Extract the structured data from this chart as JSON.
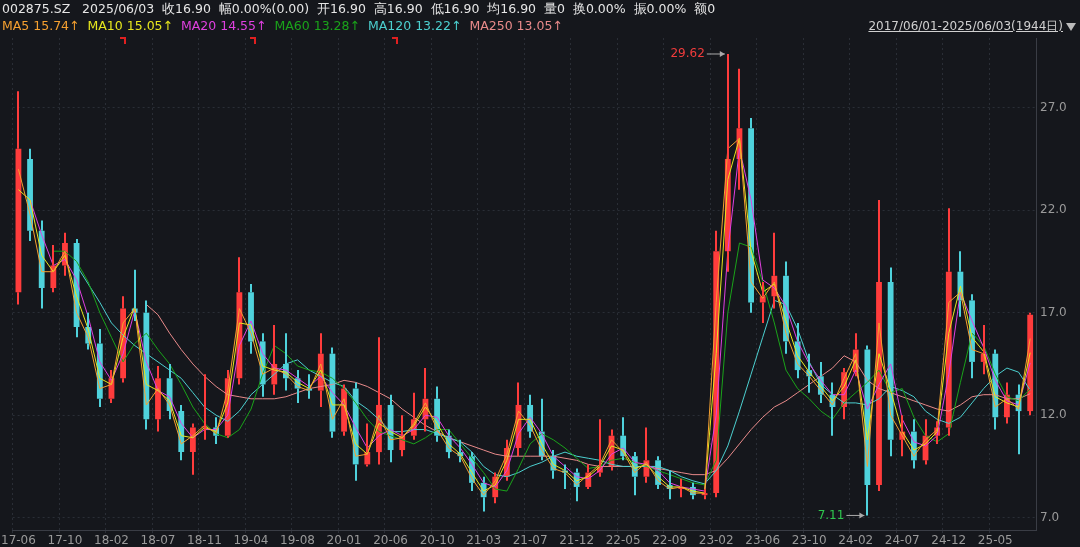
{
  "chart_data": {
    "type": "candlestick",
    "title": "002875.SZ",
    "subtitle": "2025/06/03  收16.90  幅0.00%(0.00)  开16.90  高16.90  低16.90  均16.90  量0  换0.00%  振0.00%  额0",
    "annotations": [
      "2017/06/01-2025/06/03(1944日)",
      "29.62",
      "7.11"
    ],
    "categories": [
      "17-06",
      null,
      null,
      null,
      "17-10",
      null,
      null,
      null,
      "18-02",
      null,
      null,
      null,
      "18-07",
      null,
      null,
      null,
      "18-11",
      null,
      null,
      null,
      "19-04",
      null,
      null,
      null,
      "19-08",
      null,
      null,
      null,
      "20-01",
      null,
      null,
      null,
      "20-06",
      null,
      null,
      null,
      "20-10",
      null,
      null,
      null,
      "21-03",
      null,
      null,
      null,
      "21-07",
      null,
      null,
      null,
      "21-12",
      null,
      null,
      null,
      "22-05",
      null,
      null,
      null,
      "22-09",
      null,
      null,
      null,
      "23-02",
      null,
      null,
      null,
      "23-06",
      null,
      null,
      null,
      "23-10",
      null,
      null,
      null,
      "24-02",
      null,
      null,
      null,
      "24-07",
      null,
      null,
      null,
      "24-12",
      null,
      null,
      null,
      "25-05",
      null,
      null,
      null
    ],
    "ohlc": [
      [
        18.0,
        27.8,
        17.4,
        25.0
      ],
      [
        24.5,
        25.0,
        20.5,
        21.0
      ],
      [
        21.0,
        21.5,
        17.2,
        18.2
      ],
      [
        18.2,
        20.3,
        18.0,
        19.3
      ],
      [
        19.3,
        20.9,
        18.8,
        20.4
      ],
      [
        20.4,
        20.6,
        15.8,
        16.3
      ],
      [
        16.3,
        17.0,
        15.2,
        15.5
      ],
      [
        15.5,
        16.2,
        12.4,
        12.8
      ],
      [
        12.8,
        14.2,
        12.6,
        13.8
      ],
      [
        13.8,
        17.8,
        13.6,
        17.2
      ],
      [
        17.2,
        19.1,
        16.6,
        17.0
      ],
      [
        17.0,
        17.6,
        11.3,
        11.8
      ],
      [
        11.8,
        14.4,
        11.2,
        13.8
      ],
      [
        13.8,
        14.5,
        11.8,
        12.2
      ],
      [
        12.2,
        12.5,
        9.8,
        10.2
      ],
      [
        10.2,
        11.6,
        9.1,
        11.4
      ],
      [
        11.4,
        14.0,
        10.8,
        11.4
      ],
      [
        11.4,
        11.9,
        10.6,
        11.0
      ],
      [
        11.0,
        14.2,
        10.9,
        13.8
      ],
      [
        13.8,
        19.7,
        13.5,
        18.0
      ],
      [
        18.0,
        18.4,
        15.0,
        15.6
      ],
      [
        15.6,
        16.0,
        12.9,
        13.5
      ],
      [
        13.5,
        16.4,
        13.0,
        14.5
      ],
      [
        14.5,
        16.0,
        13.2,
        13.8
      ],
      [
        13.8,
        14.2,
        12.6,
        13.3
      ],
      [
        13.3,
        14.0,
        12.8,
        13.2
      ],
      [
        13.2,
        16.0,
        12.4,
        15.0
      ],
      [
        15.0,
        15.3,
        10.9,
        11.2
      ],
      [
        11.2,
        13.5,
        11.0,
        13.3
      ],
      [
        13.3,
        13.6,
        8.8,
        9.6
      ],
      [
        9.6,
        11.6,
        9.5,
        10.2
      ],
      [
        10.2,
        15.8,
        9.6,
        12.5
      ],
      [
        12.5,
        13.0,
        9.7,
        10.3
      ],
      [
        10.3,
        12.0,
        10.0,
        11.0
      ],
      [
        11.0,
        13.1,
        10.8,
        11.8
      ],
      [
        11.8,
        14.3,
        11.2,
        12.8
      ],
      [
        12.8,
        13.4,
        10.7,
        11.0
      ],
      [
        11.0,
        11.3,
        9.9,
        10.2
      ],
      [
        10.2,
        10.8,
        9.7,
        10.0
      ],
      [
        10.0,
        10.2,
        8.3,
        8.7
      ],
      [
        8.7,
        9.0,
        7.3,
        8.0
      ],
      [
        8.0,
        9.2,
        7.7,
        9.0
      ],
      [
        9.0,
        10.8,
        8.8,
        10.4
      ],
      [
        10.4,
        13.6,
        10.0,
        12.5
      ],
      [
        12.5,
        13.0,
        10.9,
        11.2
      ],
      [
        11.2,
        12.8,
        9.8,
        10.0
      ],
      [
        10.0,
        10.3,
        8.9,
        9.3
      ],
      [
        9.3,
        9.6,
        8.4,
        9.2
      ],
      [
        9.2,
        9.4,
        7.8,
        8.5
      ],
      [
        8.5,
        9.6,
        8.4,
        9.2
      ],
      [
        9.2,
        11.8,
        9.0,
        9.5
      ],
      [
        9.5,
        11.3,
        9.3,
        11.0
      ],
      [
        11.0,
        11.9,
        9.8,
        10.0
      ],
      [
        10.0,
        10.2,
        8.1,
        9.0
      ],
      [
        9.0,
        11.4,
        8.7,
        9.8
      ],
      [
        9.8,
        10.0,
        8.4,
        8.6
      ],
      [
        8.6,
        9.3,
        7.9,
        8.4
      ],
      [
        8.4,
        8.9,
        8.0,
        8.5
      ],
      [
        8.5,
        8.7,
        7.9,
        8.1
      ],
      [
        8.1,
        8.4,
        7.9,
        8.2
      ],
      [
        8.2,
        21.0,
        8.0,
        20.0
      ],
      [
        20.0,
        29.62,
        19.0,
        24.5
      ],
      [
        24.5,
        28.9,
        23.0,
        26.0
      ],
      [
        26.0,
        26.5,
        17.0,
        17.5
      ],
      [
        17.5,
        18.5,
        16.5,
        17.8
      ],
      [
        17.8,
        20.9,
        17.2,
        18.8
      ],
      [
        18.8,
        19.5,
        15.0,
        15.6
      ],
      [
        15.6,
        16.5,
        13.8,
        14.2
      ],
      [
        14.2,
        15.0,
        13.1,
        13.9
      ],
      [
        13.9,
        14.6,
        12.6,
        13.0
      ],
      [
        13.0,
        13.6,
        11.0,
        12.4
      ],
      [
        12.4,
        14.3,
        11.8,
        14.1
      ],
      [
        14.1,
        16.0,
        13.9,
        15.2
      ],
      [
        15.2,
        15.4,
        7.11,
        8.6
      ],
      [
        8.6,
        22.5,
        8.3,
        18.5
      ],
      [
        18.5,
        19.2,
        10.0,
        10.8
      ],
      [
        10.8,
        12.0,
        10.0,
        11.2
      ],
      [
        11.2,
        11.8,
        9.4,
        9.8
      ],
      [
        9.8,
        11.8,
        9.6,
        11.0
      ],
      [
        11.0,
        11.7,
        10.6,
        11.4
      ],
      [
        11.4,
        22.1,
        11.0,
        19.0
      ],
      [
        19.0,
        20.0,
        16.8,
        17.6
      ],
      [
        17.6,
        17.9,
        13.8,
        14.6
      ],
      [
        14.6,
        16.4,
        14.0,
        15.0
      ],
      [
        15.0,
        15.2,
        11.3,
        11.9
      ],
      [
        11.9,
        13.6,
        11.6,
        13.0
      ],
      [
        13.0,
        13.5,
        10.1,
        12.2
      ],
      [
        12.2,
        17.0,
        12.0,
        16.9
      ]
    ],
    "colors": [
      "#ff3c3c",
      "#4fd2dc",
      "#4fd2dc",
      "#ff3c3c",
      "#ff3c3c",
      "#4fd2dc",
      "#4fd2dc",
      "#4fd2dc",
      "#ff3c3c",
      "#ff3c3c",
      "#4fd2dc",
      "#4fd2dc",
      "#ff3c3c",
      "#4fd2dc",
      "#4fd2dc",
      "#ff3c3c",
      "#ff3c3c",
      "#4fd2dc",
      "#ff3c3c",
      "#ff3c3c",
      "#4fd2dc",
      "#4fd2dc",
      "#ff3c3c",
      "#4fd2dc",
      "#4fd2dc",
      "#4fd2dc",
      "#ff3c3c",
      "#4fd2dc",
      "#ff3c3c",
      "#4fd2dc",
      "#ff3c3c",
      "#ff3c3c",
      "#4fd2dc",
      "#ff3c3c",
      "#ff3c3c",
      "#ff3c3c",
      "#4fd2dc",
      "#4fd2dc",
      "#4fd2dc",
      "#4fd2dc",
      "#4fd2dc",
      "#ff3c3c",
      "#ff3c3c",
      "#ff3c3c",
      "#4fd2dc",
      "#4fd2dc",
      "#4fd2dc",
      "#4fd2dc",
      "#4fd2dc",
      "#ff3c3c",
      "#ff3c3c",
      "#ff3c3c",
      "#4fd2dc",
      "#4fd2dc",
      "#ff3c3c",
      "#4fd2dc",
      "#4fd2dc",
      "#ff3c3c",
      "#4fd2dc",
      "#ff3c3c",
      "#ff3c3c",
      "#ff3c3c",
      "#ff3c3c",
      "#4fd2dc",
      "#ff3c3c",
      "#ff3c3c",
      "#4fd2dc",
      "#4fd2dc",
      "#4fd2dc",
      "#4fd2dc",
      "#4fd2dc",
      "#ff3c3c",
      "#ff3c3c",
      "#4fd2dc",
      "#ff3c3c",
      "#4fd2dc",
      "#ff3c3c",
      "#4fd2dc",
      "#ff3c3c",
      "#ff3c3c",
      "#ff3c3c",
      "#4fd2dc",
      "#4fd2dc",
      "#ff3c3c",
      "#4fd2dc",
      "#ff3c3c",
      "#4fd2dc",
      "#ff3c3c"
    ],
    "series": [
      {
        "type": "line",
        "name": "MA5 15.74↑",
        "color": "#f5a030",
        "values": [
          24.0,
          21.8,
          19.0,
          19.0,
          20.0,
          17.0,
          15.8,
          13.3,
          13.5,
          16.5,
          17.2,
          12.5,
          13.3,
          12.5,
          10.6,
          11.0,
          11.5,
          11.1,
          13.2,
          17.2,
          16.0,
          14.0,
          14.3,
          14.0,
          13.4,
          13.2,
          14.5,
          11.8,
          12.8,
          10.0,
          10.1,
          12.0,
          10.8,
          10.9,
          11.6,
          12.6,
          11.3,
          10.4,
          10.0,
          8.9,
          8.1,
          8.8,
          10.1,
          12.2,
          11.5,
          10.3,
          9.4,
          9.2,
          8.6,
          9.1,
          9.6,
          10.8,
          10.2,
          9.2,
          9.7,
          8.8,
          8.4,
          8.5,
          8.2,
          8.2,
          17.5,
          25.0,
          25.5,
          18.5,
          17.7,
          18.5,
          16.0,
          14.5,
          13.9,
          13.2,
          12.5,
          13.8,
          15.0,
          9.5,
          16.5,
          12.0,
          11.0,
          10.0,
          10.8,
          11.3,
          17.5,
          18.0,
          15.2,
          15.0,
          12.4,
          12.8,
          12.3,
          15.74
        ]
      },
      {
        "type": "line",
        "name": "MA10 15.05↑",
        "color": "#e6e61e",
        "values": [
          23.0,
          22.5,
          19.8,
          19.0,
          19.8,
          17.8,
          16.2,
          13.8,
          13.5,
          15.8,
          17.3,
          13.5,
          13.2,
          12.7,
          11.0,
          10.9,
          11.4,
          11.2,
          12.6,
          16.5,
          16.4,
          14.4,
          14.2,
          14.1,
          13.6,
          13.3,
          14.2,
          12.5,
          12.5,
          10.6,
          10.1,
          11.6,
          11.2,
          10.9,
          11.5,
          12.4,
          11.6,
          10.6,
          10.1,
          9.2,
          8.3,
          8.6,
          9.8,
          11.8,
          11.8,
          10.6,
          9.6,
          9.3,
          8.8,
          9.0,
          9.5,
          10.5,
          10.3,
          9.4,
          9.6,
          9.0,
          8.5,
          8.5,
          8.3,
          8.2,
          15.0,
          23.5,
          25.5,
          20.0,
          18.0,
          18.4,
          16.6,
          14.9,
          14.1,
          13.4,
          12.7,
          13.4,
          14.7,
          10.8,
          15.0,
          13.2,
          11.2,
          10.3,
          10.6,
          11.2,
          16.0,
          18.3,
          15.8,
          15.1,
          12.9,
          12.6,
          12.4,
          15.05
        ]
      },
      {
        "type": "line",
        "name": "MA20 14.55↑",
        "color": "#e040e0",
        "values": [
          null,
          22.5,
          20.8,
          19.3,
          19.6,
          18.6,
          16.8,
          14.6,
          13.7,
          15.0,
          17.1,
          14.6,
          13.2,
          12.9,
          11.6,
          10.9,
          11.3,
          11.3,
          12.0,
          15.4,
          16.6,
          15.0,
          14.3,
          14.2,
          13.8,
          13.4,
          13.9,
          13.1,
          12.5,
          11.4,
          10.4,
          11.0,
          11.3,
          11.0,
          11.3,
          12.0,
          11.9,
          11.0,
          10.4,
          9.6,
          8.7,
          8.5,
          9.3,
          11.1,
          11.9,
          11.1,
          10.0,
          9.5,
          9.0,
          8.9,
          9.3,
          10.1,
          10.4,
          9.7,
          9.6,
          9.3,
          8.7,
          8.5,
          8.4,
          8.3,
          12.0,
          20.0,
          25.0,
          22.5,
          18.6,
          18.2,
          17.3,
          15.6,
          14.5,
          13.7,
          13.0,
          13.0,
          14.2,
          12.3,
          13.5,
          14.5,
          11.8,
          10.7,
          10.5,
          11.0,
          14.0,
          18.0,
          16.6,
          15.3,
          13.7,
          12.7,
          12.5,
          14.55
        ]
      },
      {
        "type": "line",
        "name": "MA60 13.28↑",
        "color": "#1aa31a",
        "values": [
          null,
          null,
          null,
          20.0,
          20.0,
          19.5,
          18.5,
          17.0,
          15.8,
          14.6,
          15.5,
          16.0,
          15.2,
          14.5,
          13.5,
          12.4,
          11.6,
          11.1,
          10.9,
          11.3,
          12.3,
          14.0,
          15.4,
          15.0,
          14.4,
          14.2,
          14.1,
          13.8,
          13.3,
          12.6,
          11.8,
          11.2,
          11.0,
          10.8,
          10.6,
          10.9,
          11.3,
          11.3,
          10.6,
          9.9,
          9.2,
          8.4,
          8.3,
          9.4,
          10.6,
          11.1,
          10.8,
          10.4,
          9.9,
          9.4,
          9.5,
          9.8,
          9.9,
          9.7,
          9.5,
          9.3,
          9.1,
          8.9,
          8.7,
          8.6,
          9.8,
          17.0,
          20.4,
          20.2,
          18.5,
          16.5,
          14.2,
          13.3,
          12.8,
          12.2,
          11.8,
          12.6,
          13.1,
          13.6,
          14.2,
          13.1,
          13.3,
          11.9,
          11.0,
          10.7,
          11.1,
          13.6,
          16.0,
          15.4,
          14.0,
          12.9,
          12.7,
          13.28
        ]
      },
      {
        "type": "line",
        "name": "MA120 13.22↑",
        "color": "#4cd0d0",
        "values": [
          null,
          null,
          null,
          null,
          null,
          19.3,
          18.4,
          17.5,
          16.5,
          15.9,
          15.4,
          15.0,
          14.6,
          14.2,
          13.8,
          13.1,
          12.4,
          12.0,
          11.7,
          12.2,
          13.0,
          13.5,
          14.0,
          14.5,
          14.7,
          14.2,
          13.9,
          13.6,
          13.4,
          12.7,
          12.3,
          11.8,
          11.2,
          11.2,
          11.3,
          11.3,
          11.1,
          10.9,
          10.7,
          10.2,
          9.5,
          9.1,
          9.0,
          9.2,
          9.5,
          9.7,
          10.0,
          10.2,
          10.0,
          9.9,
          9.8,
          9.6,
          9.5,
          9.5,
          9.5,
          9.5,
          9.3,
          9.0,
          8.8,
          8.65,
          9.3,
          10.5,
          12.2,
          14.0,
          15.8,
          17.6,
          17.4,
          16.2,
          14.6,
          13.5,
          13.0,
          12.6,
          12.6,
          12.5,
          12.8,
          13.4,
          13.2,
          12.9,
          12.2,
          11.8,
          11.6,
          11.9,
          12.6,
          13.3,
          13.9,
          14.3,
          14.1,
          13.22
        ]
      },
      {
        "type": "line",
        "name": "MA250 13.05↑",
        "color": "#e88a8a",
        "values": [
          null,
          null,
          null,
          null,
          null,
          null,
          null,
          null,
          null,
          null,
          null,
          17.4,
          16.9,
          16.0,
          15.2,
          14.5,
          13.9,
          13.4,
          13.0,
          12.9,
          12.8,
          12.8,
          12.8,
          12.9,
          13.1,
          13.3,
          13.4,
          13.5,
          13.7,
          13.6,
          13.4,
          13.1,
          12.8,
          12.3,
          11.9,
          11.5,
          11.2,
          10.9,
          10.7,
          10.5,
          10.3,
          10.1,
          10.0,
          10.0,
          10.0,
          10.0,
          10.0,
          9.9,
          9.8,
          9.6,
          9.5,
          9.5,
          9.5,
          9.5,
          9.5,
          9.4,
          9.3,
          9.2,
          9.1,
          9.1,
          9.3,
          9.9,
          10.6,
          11.3,
          11.9,
          12.4,
          12.7,
          13.1,
          13.5,
          13.9,
          14.3,
          14.9,
          14.6,
          13.7,
          13.3,
          13.1,
          12.9,
          12.7,
          12.5,
          12.3,
          12.2,
          12.5,
          12.9,
          13.0,
          13.0,
          12.8,
          12.8,
          13.05
        ]
      }
    ],
    "ylim": [
      6.4,
      30.4
    ],
    "yticks": [
      {
        "value": 7,
        "label": "7.0"
      },
      {
        "value": 12,
        "label": "12.0"
      },
      {
        "value": 17,
        "label": "17.0"
      },
      {
        "value": 22,
        "label": "22.0"
      },
      {
        "value": 27,
        "label": "27.0"
      }
    ],
    "grid": true,
    "legend": "top left",
    "marker": "none",
    "line_style": "solid"
  }
}
